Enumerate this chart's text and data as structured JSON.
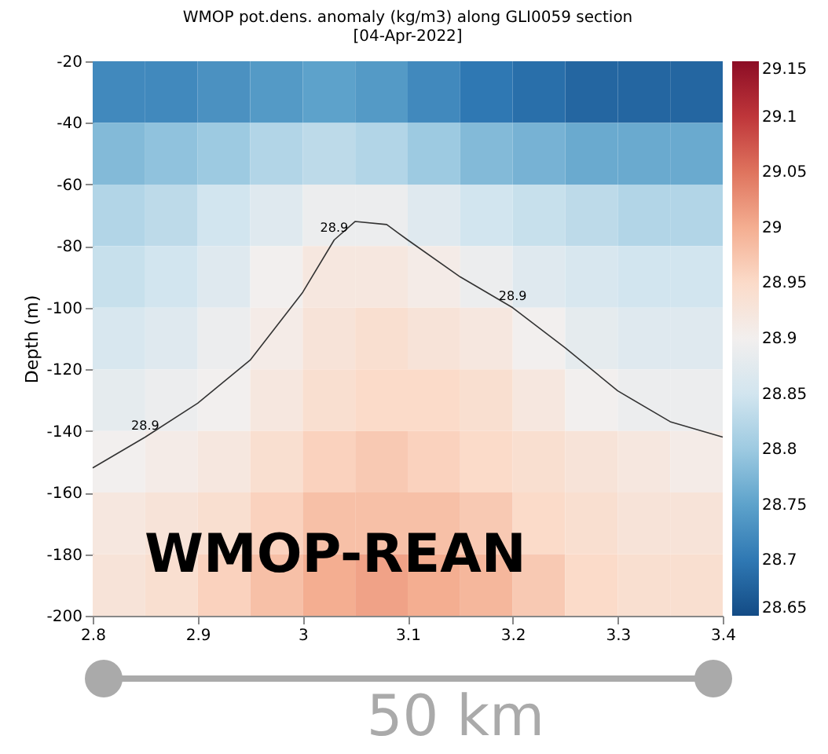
{
  "chart_data": {
    "type": "heatmap",
    "title": "WMOP pot.dens. anomaly (kg/m3) along GLI0059 section",
    "subtitle": "[04-Apr-2022]",
    "ylabel": "Depth (m)",
    "x": [
      2.825,
      2.875,
      2.925,
      2.975,
      3.025,
      3.075,
      3.125,
      3.175,
      3.225,
      3.275,
      3.325,
      3.375
    ],
    "y": [
      -30,
      -50,
      -70,
      -90,
      -110,
      -130,
      -150,
      -170,
      -190
    ],
    "cells": [
      [
        28.72,
        28.72,
        28.73,
        28.74,
        28.75,
        28.74,
        28.72,
        28.7,
        28.69,
        28.68,
        28.68,
        28.68
      ],
      [
        28.78,
        28.79,
        28.8,
        28.82,
        28.83,
        28.82,
        28.8,
        28.78,
        28.77,
        28.76,
        28.76,
        28.76
      ],
      [
        28.82,
        28.83,
        28.85,
        28.87,
        28.89,
        28.89,
        28.87,
        28.85,
        28.84,
        28.83,
        28.82,
        28.82
      ],
      [
        28.84,
        28.85,
        28.87,
        28.9,
        28.92,
        28.92,
        28.91,
        28.89,
        28.87,
        28.86,
        28.85,
        28.85
      ],
      [
        28.86,
        28.87,
        28.89,
        28.91,
        28.93,
        28.94,
        28.93,
        28.92,
        28.9,
        28.88,
        28.87,
        28.87
      ],
      [
        28.88,
        28.89,
        28.9,
        28.92,
        28.94,
        28.95,
        28.95,
        28.94,
        28.92,
        28.9,
        28.89,
        28.89
      ],
      [
        28.9,
        28.91,
        28.92,
        28.94,
        28.96,
        28.97,
        28.96,
        28.95,
        28.94,
        28.93,
        28.92,
        28.91
      ],
      [
        28.92,
        28.93,
        28.94,
        28.96,
        28.98,
        28.98,
        28.98,
        28.97,
        28.95,
        28.94,
        28.93,
        28.93
      ],
      [
        28.93,
        28.94,
        28.96,
        28.98,
        29.0,
        29.01,
        29.0,
        28.99,
        28.97,
        28.95,
        28.94,
        28.94
      ]
    ],
    "clim": [
      28.65,
      29.15
    ],
    "cticks": [
      28.65,
      28.7,
      28.75,
      28.8,
      28.85,
      28.9,
      28.95,
      29,
      29.05,
      29.1,
      29.15
    ],
    "xlim": [
      2.8,
      3.4
    ],
    "xticks": [
      2.8,
      2.9,
      3,
      3.1,
      3.2,
      3.3,
      3.4
    ],
    "ylim": [
      -200,
      -20
    ],
    "yticks": [
      -200,
      -180,
      -160,
      -140,
      -120,
      -100,
      -80,
      -60,
      -40,
      -20
    ],
    "series": [
      {
        "type": "line",
        "color": "#333333",
        "x": [
          2.8,
          2.85,
          2.9,
          2.95,
          3.0,
          3.03,
          3.05,
          3.08,
          3.1,
          3.15,
          3.2,
          3.25,
          3.3,
          3.35,
          3.4
        ],
        "values": [
          -152,
          -142,
          -131,
          -117,
          -95,
          -78,
          -72,
          -73,
          -78,
          -90,
          -100,
          -113,
          -127,
          -137,
          -142
        ]
      }
    ],
    "annotations": [
      {
        "text": "28.9",
        "x": 2.85,
        "y": -142
      },
      {
        "text": "28.9",
        "x": 3.03,
        "y": -78
      },
      {
        "text": "28.9",
        "x": 3.2,
        "y": -100
      },
      "WMOP-REAN",
      "50 km"
    ]
  }
}
